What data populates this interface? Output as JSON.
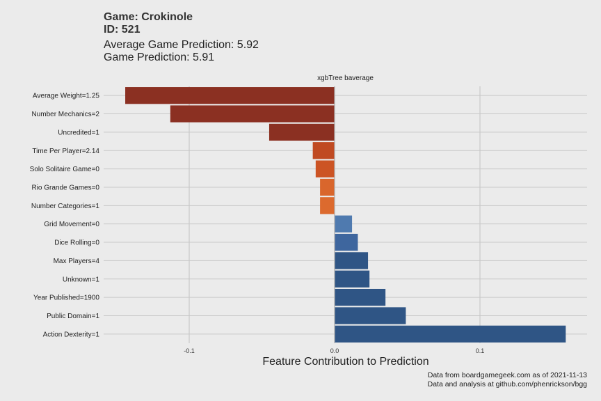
{
  "header": {
    "game_title": "Game: Crokinole",
    "game_id": "ID: 521",
    "avg_prediction": "Average Game Prediction: 5.92",
    "game_prediction": "Game Prediction: 5.91"
  },
  "caption": {
    "line1": "Data from boardgamegeek.com as of 2021-11-13",
    "line2": "Data and analysis at github.com/phenrickson/bgg"
  },
  "chart_data": {
    "type": "bar",
    "orientation": "horizontal",
    "facet_label": "xgbTree baverage",
    "xlabel": "Feature Contribution to Prediction",
    "ylabel": "",
    "xlim": [
      -0.145,
      0.16
    ],
    "x_ticks": [
      -0.1,
      0.0,
      0.1
    ],
    "x_tick_labels": [
      "-0.1",
      "0.0",
      "0.1"
    ],
    "grid": true,
    "legend": "none",
    "categories": [
      "Average Weight=1.25",
      "Number Mechanics=2",
      "Uncredited=1",
      "Time Per Player=2.14",
      "Solo Solitaire Game=0",
      "Rio Grande Games=0",
      "Number Categories=1",
      "Grid Movement=0",
      "Dice Rolling=0",
      "Max Players=4",
      "Unknown=1",
      "Year Published=1900",
      "Public Domain=1",
      "Action Dexterity=1"
    ],
    "values": [
      -0.144,
      -0.113,
      -0.045,
      -0.015,
      -0.013,
      -0.01,
      -0.01,
      0.012,
      0.016,
      0.023,
      0.024,
      0.035,
      0.049,
      0.159
    ],
    "colors": [
      "#8b3022",
      "#8b3022",
      "#8b3022",
      "#c04a22",
      "#cc5424",
      "#d9662c",
      "#dc6a2e",
      "#4f7aaf",
      "#3e669e",
      "#2f5585",
      "#2f5585",
      "#2f5585",
      "#2f5585",
      "#2f5585"
    ]
  }
}
